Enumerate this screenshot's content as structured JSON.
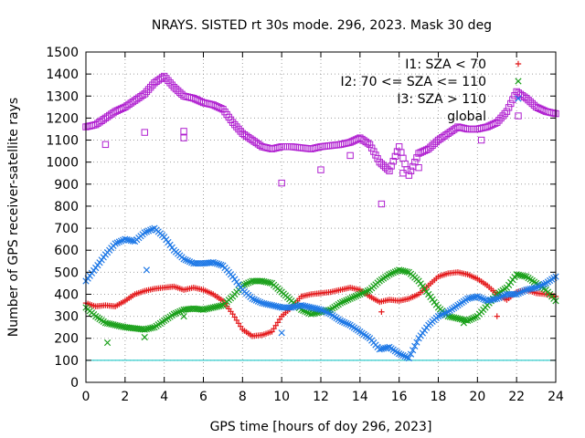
{
  "chart_data": {
    "type": "scatter",
    "title": "NRAYS. SISTED rt 30s mode. 296, 2023. Mask 30 deg",
    "xlabel": "GPS time [hours of doy 296, 2023]",
    "ylabel": "Number of GPS receiver-satellite rays",
    "xlim": [
      0,
      24
    ],
    "ylim": [
      0,
      1500
    ],
    "xticks": [
      0,
      2,
      4,
      6,
      8,
      10,
      12,
      14,
      16,
      18,
      20,
      22,
      24
    ],
    "yticks": [
      0,
      100,
      200,
      300,
      400,
      500,
      600,
      700,
      800,
      900,
      1000,
      1100,
      1200,
      1300,
      1400,
      1500
    ],
    "grid": true,
    "legend_position": "top-right",
    "reference_line": {
      "y": 100,
      "color": "#00c0c0"
    },
    "series": [
      {
        "name": "I1: SZA < 70",
        "marker": "+",
        "color": "#e41a1c",
        "x": [
          0,
          0.5,
          1,
          1.5,
          2,
          2.5,
          3,
          3.5,
          4,
          4.5,
          5,
          5.5,
          6,
          6.5,
          7,
          7.5,
          8,
          8.5,
          9,
          9.5,
          10,
          10.5,
          11,
          11.5,
          12,
          12.5,
          13,
          13.5,
          14,
          14.5,
          15,
          15.5,
          16,
          16.5,
          17,
          17.5,
          18,
          18.5,
          19,
          19.5,
          20,
          20.5,
          21,
          21.5,
          22,
          22.5,
          23,
          23.5,
          24
        ],
        "y": [
          360,
          345,
          350,
          345,
          370,
          400,
          415,
          425,
          430,
          435,
          420,
          430,
          420,
          400,
          370,
          310,
          240,
          210,
          215,
          230,
          300,
          340,
          390,
          400,
          405,
          410,
          420,
          430,
          420,
          390,
          365,
          375,
          370,
          380,
          400,
          440,
          480,
          495,
          500,
          490,
          470,
          440,
          400,
          375,
          410,
          420,
          405,
          400,
          390
        ]
      },
      {
        "name": "I2: 70 <= SZA <= 110",
        "marker": "x",
        "color": "#1aa01a",
        "x": [
          0,
          0.5,
          1,
          1.5,
          2,
          2.5,
          3,
          3.5,
          4,
          4.5,
          5,
          5.5,
          6,
          6.5,
          7,
          7.5,
          8,
          8.5,
          9,
          9.5,
          10,
          10.5,
          11,
          11.5,
          12,
          12.5,
          13,
          13.5,
          14,
          14.5,
          15,
          15.5,
          16,
          16.5,
          17,
          17.5,
          18,
          18.5,
          19,
          19.5,
          20,
          20.5,
          21,
          21.5,
          22,
          22.5,
          23,
          23.5,
          24
        ],
        "y": [
          340,
          300,
          270,
          260,
          250,
          245,
          240,
          250,
          280,
          310,
          330,
          335,
          330,
          340,
          350,
          390,
          440,
          460,
          460,
          450,
          410,
          370,
          330,
          310,
          320,
          330,
          360,
          380,
          400,
          420,
          460,
          490,
          510,
          500,
          460,
          400,
          340,
          300,
          290,
          280,
          300,
          350,
          400,
          430,
          490,
          480,
          450,
          420,
          370
        ]
      },
      {
        "name": "I3: SZA > 110",
        "marker": "x",
        "color": "#1e78e6",
        "x": [
          0,
          0.5,
          1,
          1.5,
          2,
          2.5,
          3,
          3.5,
          4,
          4.5,
          5,
          5.5,
          6,
          6.5,
          7,
          7.5,
          8,
          8.5,
          9,
          9.5,
          10,
          10.5,
          11,
          11.5,
          12,
          12.5,
          13,
          13.5,
          14,
          14.5,
          15,
          15.5,
          16,
          16.5,
          17,
          17.5,
          18,
          18.5,
          19,
          19.5,
          20,
          20.5,
          21,
          21.5,
          22,
          22.5,
          23,
          23.5,
          24
        ],
        "y": [
          460,
          520,
          580,
          630,
          650,
          640,
          680,
          700,
          660,
          600,
          560,
          540,
          540,
          545,
          530,
          480,
          420,
          380,
          360,
          350,
          340,
          340,
          350,
          340,
          330,
          310,
          280,
          260,
          230,
          200,
          150,
          160,
          130,
          110,
          200,
          260,
          300,
          320,
          350,
          380,
          390,
          370,
          380,
          400,
          400,
          420,
          430,
          450,
          480
        ]
      },
      {
        "name": "global",
        "marker": "square",
        "color": "#b020d0",
        "x": [
          0,
          0.5,
          1,
          1.5,
          2,
          2.5,
          3,
          3.5,
          4,
          4.5,
          5,
          5.5,
          6,
          6.5,
          7,
          7.5,
          8,
          8.5,
          9,
          9.5,
          10,
          10.5,
          11,
          11.5,
          12,
          12.5,
          13,
          13.5,
          14,
          14.5,
          15,
          15.5,
          16,
          16.5,
          17,
          17.5,
          18,
          18.5,
          19,
          19.5,
          20,
          20.5,
          21,
          21.5,
          22,
          22.5,
          23,
          23.5,
          24
        ],
        "y": [
          1160,
          1170,
          1200,
          1230,
          1250,
          1280,
          1310,
          1360,
          1390,
          1340,
          1300,
          1290,
          1270,
          1260,
          1240,
          1180,
          1130,
          1100,
          1070,
          1060,
          1070,
          1070,
          1065,
          1060,
          1070,
          1075,
          1080,
          1090,
          1110,
          1080,
          1000,
          960,
          1070,
          940,
          1040,
          1060,
          1100,
          1130,
          1160,
          1150,
          1150,
          1160,
          1180,
          1230,
          1320,
          1290,
          1250,
          1230,
          1220
        ]
      }
    ],
    "outliers": [
      {
        "series": "I1: SZA < 70",
        "x": [
          15.1,
          21.0
        ],
        "y": [
          320,
          300
        ]
      },
      {
        "series": "I2: 70 <= SZA <= 110",
        "x": [
          1.1,
          3.0,
          5.0,
          19.3
        ],
        "y": [
          180,
          205,
          300,
          270
        ]
      },
      {
        "series": "I3: SZA > 110",
        "x": [
          3.1,
          10.0
        ],
        "y": [
          510,
          225
        ]
      },
      {
        "series": "global",
        "x": [
          1.0,
          3.0,
          5.0,
          5.0,
          10.0,
          12.0,
          13.5,
          15.1,
          16.2,
          17.0,
          20.2
        ],
        "y": [
          1080,
          1135,
          1140,
          1110,
          905,
          965,
          1030,
          810,
          950,
          975,
          1100
        ]
      }
    ]
  }
}
